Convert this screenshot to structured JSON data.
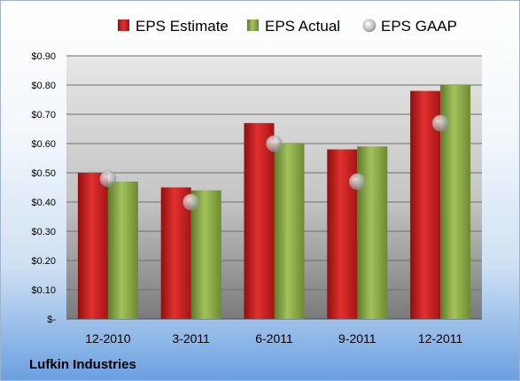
{
  "company_label": "Lufkin Industries",
  "chart_data": {
    "type": "bar",
    "title": "",
    "xlabel": "",
    "ylabel": "",
    "categories": [
      "12-2010",
      "3-2011",
      "6-2011",
      "9-2011",
      "12-2011"
    ],
    "series": [
      {
        "name": "EPS Estimate",
        "kind": "bar",
        "color": "#cc1f1f",
        "values": [
          0.5,
          0.45,
          0.67,
          0.58,
          0.78
        ]
      },
      {
        "name": "EPS Actual",
        "kind": "bar",
        "color": "#8fb04a",
        "values": [
          0.47,
          0.44,
          0.6,
          0.59,
          0.8
        ]
      },
      {
        "name": "EPS GAAP",
        "kind": "marker",
        "color": "#c8c8c8",
        "values": [
          0.48,
          0.4,
          0.6,
          0.47,
          0.67
        ]
      }
    ],
    "ylim": [
      0,
      0.9
    ],
    "ytick_values": [
      0,
      0.1,
      0.2,
      0.3,
      0.4,
      0.5,
      0.6,
      0.7,
      0.8,
      0.9
    ],
    "ytick_labels": [
      "$-",
      "$0.10",
      "$0.20",
      "$0.30",
      "$0.40",
      "$0.50",
      "$0.60",
      "$0.70",
      "$0.80",
      "$0.90"
    ],
    "grid": true,
    "legend_position": "top"
  }
}
